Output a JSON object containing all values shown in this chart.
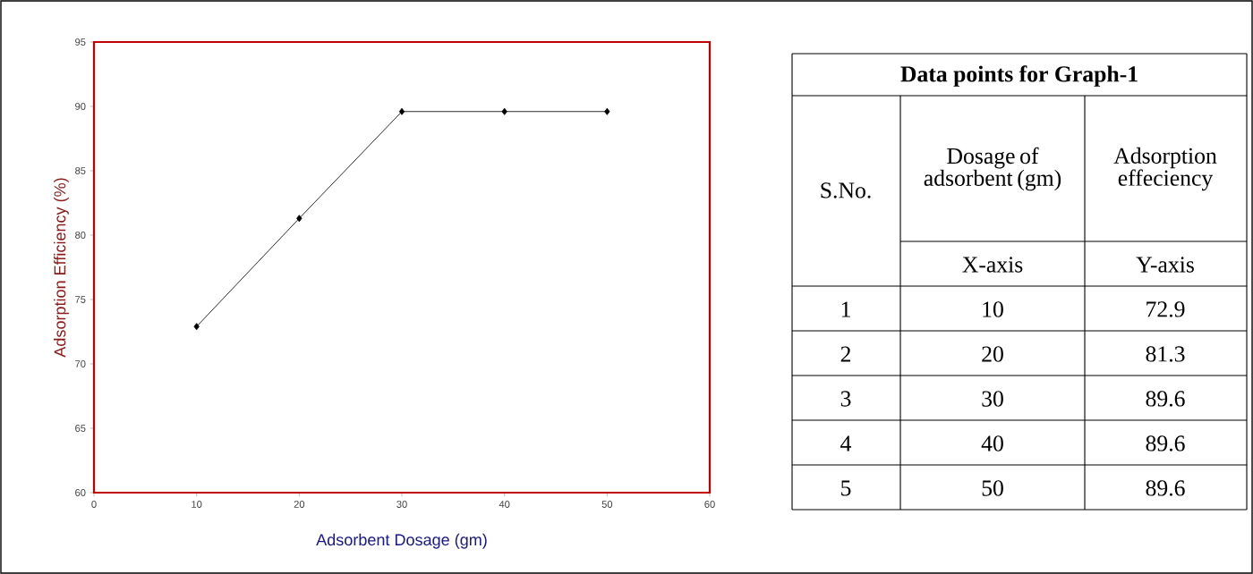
{
  "chart_data": {
    "type": "line",
    "xlabel": "Adsorbent Dosage (gm)",
    "ylabel": "Adsorption Efficiency (%)",
    "x": [
      10,
      20,
      30,
      40,
      50
    ],
    "values": [
      72.9,
      81.3,
      89.6,
      89.6,
      89.6
    ],
    "color": "#000000",
    "marker": "diamond",
    "line_style": "solid",
    "grid": false,
    "xlim": [
      0,
      60
    ],
    "xticks": [
      0,
      10,
      20,
      30,
      40,
      50,
      60
    ],
    "ylim": [
      60,
      95
    ],
    "yticks": [
      60,
      65,
      70,
      75,
      80,
      85,
      90,
      95
    ],
    "annotations": [
      "Data points for Graph-1",
      "S.No.",
      "Dosage of adsorbent (gm)",
      "Adsorption effeciency",
      "X-axis",
      "Y-axis",
      "1",
      "10",
      "72.9",
      "2",
      "20",
      "81.3",
      "3",
      "30",
      "89.6",
      "4",
      "40",
      "89.6",
      "5",
      "50",
      "89.6"
    ]
  }
}
